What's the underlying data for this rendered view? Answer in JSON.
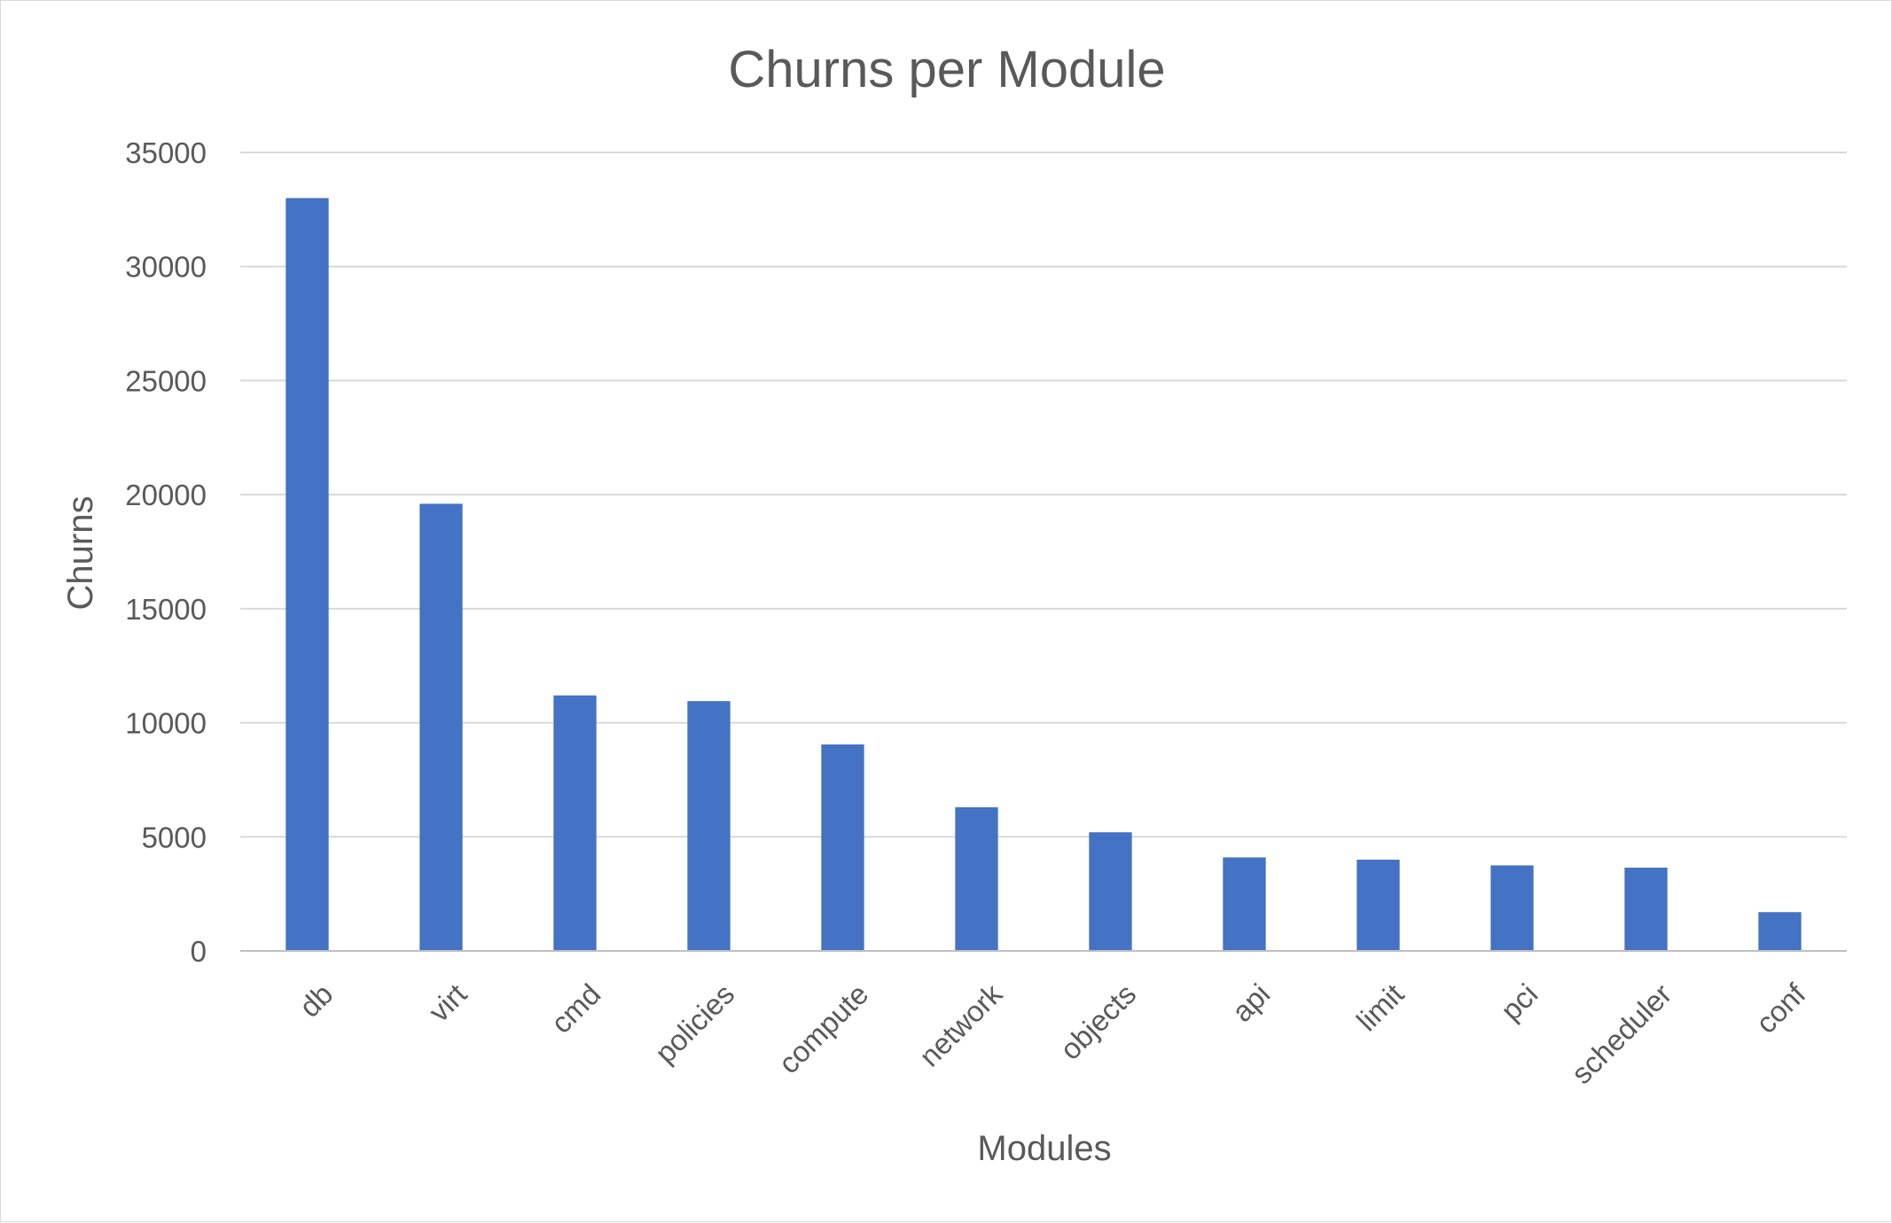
{
  "chart_data": {
    "type": "bar",
    "title": "Churns per Module",
    "xlabel": "Modules",
    "ylabel": "Churns",
    "ylim": [
      0,
      35000
    ],
    "yticks": [
      0,
      5000,
      10000,
      15000,
      20000,
      25000,
      30000,
      35000
    ],
    "grid": true,
    "legend": "none",
    "bar_color": "#4472C4",
    "categories": [
      "db",
      "virt",
      "cmd",
      "policies",
      "compute",
      "network",
      "objects",
      "api",
      "limit",
      "pci",
      "scheduler",
      "conf"
    ],
    "values": [
      33000,
      19600,
      11200,
      10950,
      9050,
      6300,
      5200,
      4100,
      4000,
      3750,
      3650,
      1700
    ]
  }
}
